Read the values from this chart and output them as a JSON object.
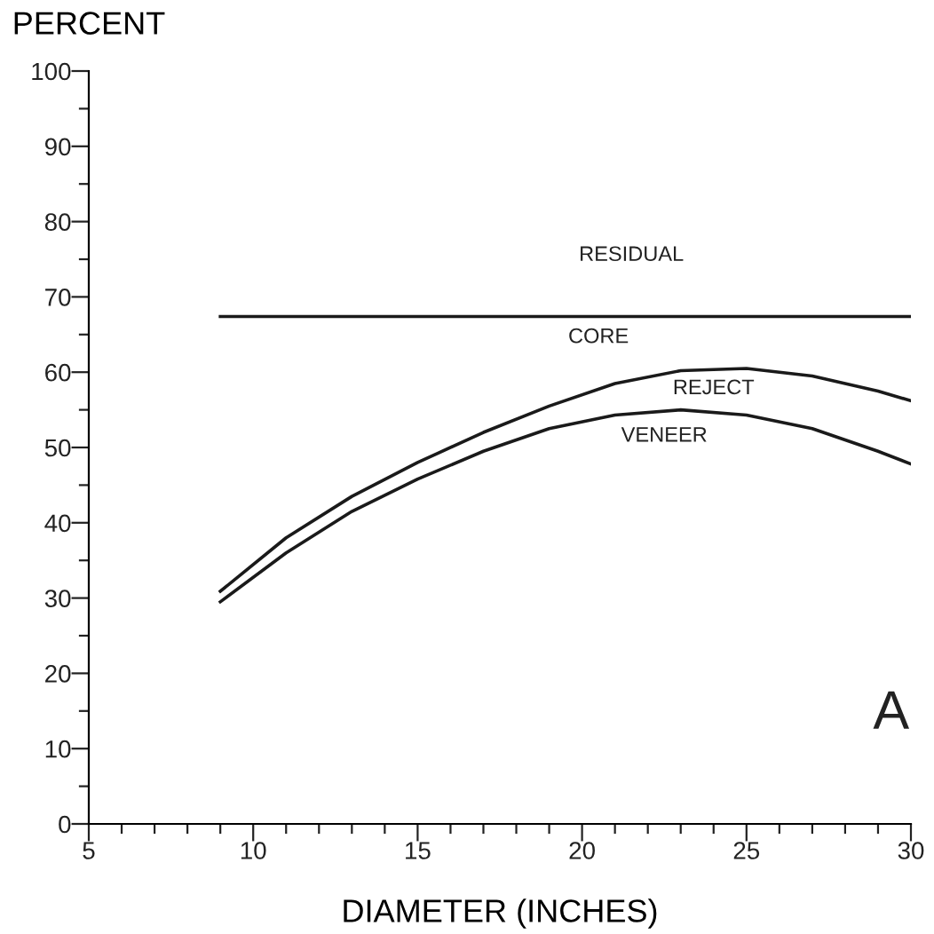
{
  "chart_data": {
    "type": "line",
    "xlabel": "DIAMETER (INCHES)",
    "ylabel": "PERCENT",
    "xlim": [
      5,
      30
    ],
    "ylim": [
      0,
      100
    ],
    "xticks": [
      5,
      {
        "value": 6,
        "label": null
      },
      {
        "value": 7,
        "label": null
      },
      {
        "value": 8,
        "label": null
      },
      {
        "value": 9,
        "label": null
      },
      10,
      {
        "value": 11,
        "label": null
      },
      {
        "value": 12,
        "label": null
      },
      {
        "value": 13,
        "label": null
      },
      {
        "value": 14,
        "label": null
      },
      15,
      {
        "value": 16,
        "label": null
      },
      {
        "value": 17,
        "label": null
      },
      {
        "value": 18,
        "label": null
      },
      {
        "value": 19,
        "label": null
      },
      20,
      {
        "value": 21,
        "label": null
      },
      {
        "value": 22,
        "label": null
      },
      {
        "value": 23,
        "label": null
      },
      {
        "value": 24,
        "label": null
      },
      25,
      {
        "value": 26,
        "label": null
      },
      {
        "value": 27,
        "label": null
      },
      {
        "value": 28,
        "label": null
      },
      {
        "value": 29,
        "label": null
      },
      30
    ],
    "yticks": [
      0,
      {
        "value": 5,
        "label": null
      },
      10,
      {
        "value": 15,
        "label": null
      },
      20,
      {
        "value": 25,
        "label": null
      },
      30,
      {
        "value": 35,
        "label": null
      },
      40,
      {
        "value": 45,
        "label": null
      },
      50,
      {
        "value": 55,
        "label": null
      },
      60,
      {
        "value": 65,
        "label": null
      },
      70,
      {
        "value": 75,
        "label": null
      },
      80,
      {
        "value": 85,
        "label": null
      },
      90,
      {
        "value": 95,
        "label": null
      },
      100
    ],
    "grid": false,
    "legend": false,
    "marker": "none",
    "line_style": "solid",
    "series": [
      {
        "color": "#1a1a1a",
        "x": [
          9,
          30
        ],
        "values": [
          67.4,
          67.4
        ]
      },
      {
        "color": "#1a1a1a",
        "x": [
          9,
          11,
          13,
          15,
          17,
          19,
          21,
          23,
          25,
          27,
          29,
          30
        ],
        "values": [
          30.9,
          38,
          43.5,
          48,
          52,
          55.5,
          58.5,
          60.2,
          60.5,
          59.5,
          57.5,
          56.2
        ]
      },
      {
        "color": "#1a1a1a",
        "x": [
          9,
          11,
          13,
          15,
          17,
          19,
          21,
          23,
          25,
          27,
          29,
          30
        ],
        "values": [
          29.5,
          36,
          41.5,
          45.8,
          49.5,
          52.5,
          54.3,
          55,
          54.3,
          52.5,
          49.5,
          47.8
        ]
      }
    ],
    "annotations": [
      "RESIDUAL",
      "CORE",
      "REJECT",
      "VENEER",
      "A"
    ]
  }
}
